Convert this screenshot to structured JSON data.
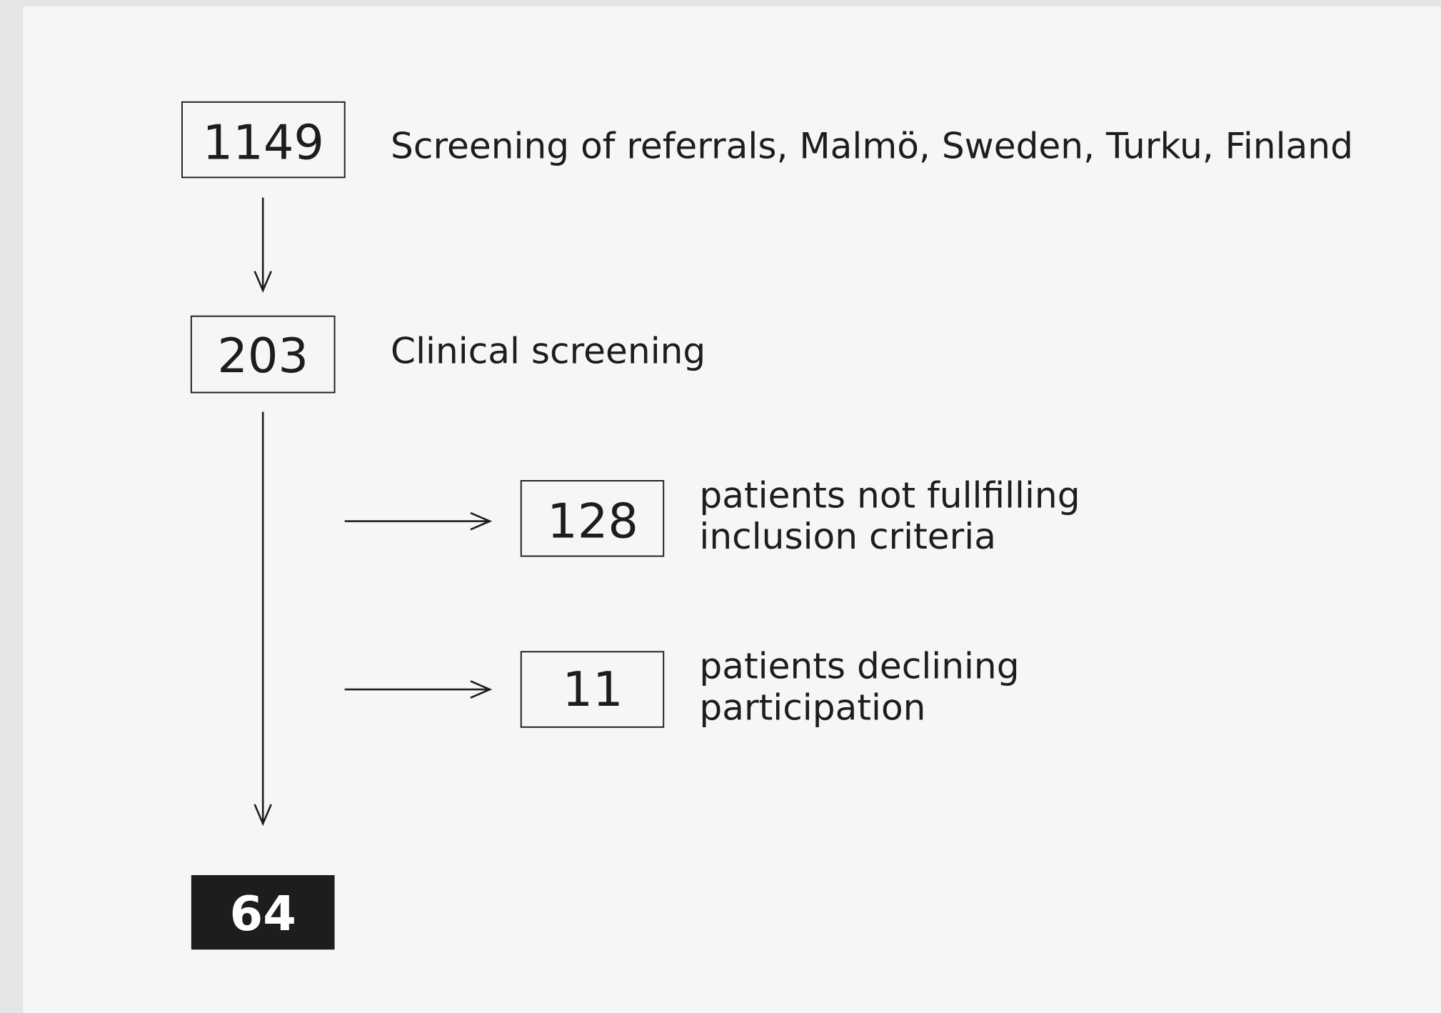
{
  "nodes": [
    {
      "count": 1149,
      "label": [
        "Screening of referrals, Malmö, Sweden, Turku, Finland"
      ]
    },
    {
      "count": 203,
      "label": [
        "Clinical screening"
      ]
    },
    {
      "count": 128,
      "label": [
        "patients not fullfilling",
        "inclusion criteria"
      ]
    },
    {
      "count": 11,
      "label": [
        "patients declining",
        "participation"
      ]
    },
    {
      "count": 64
    }
  ]
}
